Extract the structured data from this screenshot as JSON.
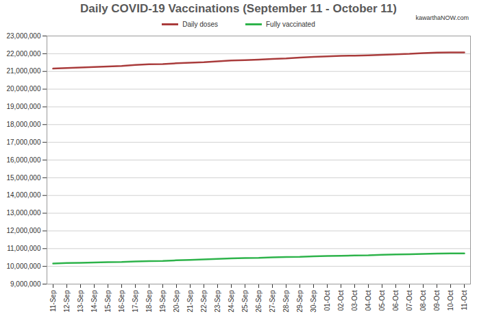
{
  "chart_data": {
    "type": "line",
    "title": "Daily COVID-19 Vaccinations (September 11 - October 11)",
    "annotations": [
      "kawarthaNOW.com"
    ],
    "categories": [
      "11-Sep",
      "12-Sep",
      "13-Sep",
      "14-Sep",
      "15-Sep",
      "16-Sep",
      "17-Sep",
      "18-Sep",
      "19-Sep",
      "20-Sep",
      "21-Sep",
      "22-Sep",
      "23-Sep",
      "24-Sep",
      "25-Sep",
      "26-Sep",
      "27-Sep",
      "28-Sep",
      "29-Sep",
      "30-Sep",
      "01-Oct",
      "02-Oct",
      "03-Oct",
      "04-Oct",
      "05-Oct",
      "06-Oct",
      "07-Oct",
      "08-Oct",
      "09-Oct",
      "10-Oct",
      "11-Oct"
    ],
    "series": [
      {
        "name": "Daily doses",
        "color": "#a93b3b",
        "values": [
          21160000,
          21190000,
          21220000,
          21250000,
          21280000,
          21310000,
          21370000,
          21400000,
          21410000,
          21460000,
          21490000,
          21520000,
          21570000,
          21620000,
          21640000,
          21670000,
          21700000,
          21730000,
          21780000,
          21820000,
          21850000,
          21880000,
          21890000,
          21910000,
          21940000,
          21970000,
          21990000,
          22030000,
          22060000,
          22070000,
          22070000
        ]
      },
      {
        "name": "Fully vaccinated",
        "color": "#2db34a",
        "values": [
          10160000,
          10190000,
          10200000,
          10220000,
          10240000,
          10250000,
          10280000,
          10300000,
          10310000,
          10340000,
          10360000,
          10390000,
          10420000,
          10450000,
          10470000,
          10480000,
          10510000,
          10530000,
          10540000,
          10570000,
          10590000,
          10600000,
          10610000,
          10620000,
          10650000,
          10670000,
          10680000,
          10700000,
          10720000,
          10730000,
          10730000
        ]
      }
    ],
    "ylim": [
      9000000,
      23000000
    ],
    "yticks": [
      {
        "value": 9000000,
        "label": "9,000,000"
      },
      {
        "value": 10000000,
        "label": "10,000,000"
      },
      {
        "value": 11000000,
        "label": "11,000,000"
      },
      {
        "value": 12000000,
        "label": "12,000,000"
      },
      {
        "value": 13000000,
        "label": "13,000,000"
      },
      {
        "value": 14000000,
        "label": "14,000,000"
      },
      {
        "value": 15000000,
        "label": "15,000,000"
      },
      {
        "value": 16000000,
        "label": "16,000,000"
      },
      {
        "value": 17000000,
        "label": "17,000,000"
      },
      {
        "value": 18000000,
        "label": "18,000,000"
      },
      {
        "value": 19000000,
        "label": "19,000,000"
      },
      {
        "value": 20000000,
        "label": "20,000,000"
      },
      {
        "value": 21000000,
        "label": "21,000,000"
      },
      {
        "value": 22000000,
        "label": "22,000,000"
      },
      {
        "value": 23000000,
        "label": "23,000,000"
      }
    ],
    "grid": true,
    "legend": "top"
  }
}
